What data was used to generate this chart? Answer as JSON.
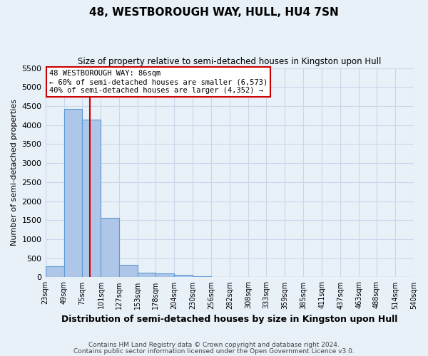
{
  "title": "48, WESTBOROUGH WAY, HULL, HU4 7SN",
  "subtitle": "Size of property relative to semi-detached houses in Kingston upon Hull",
  "xlabel": "Distribution of semi-detached houses by size in Kingston upon Hull",
  "ylabel": "Number of semi-detached properties",
  "footer_line1": "Contains HM Land Registry data © Crown copyright and database right 2024.",
  "footer_line2": "Contains public sector information licensed under the Open Government Licence v3.0.",
  "bin_labels": [
    "23sqm",
    "49sqm",
    "75sqm",
    "101sqm",
    "127sqm",
    "153sqm",
    "178sqm",
    "204sqm",
    "230sqm",
    "256sqm",
    "282sqm",
    "308sqm",
    "333sqm",
    "359sqm",
    "385sqm",
    "411sqm",
    "437sqm",
    "463sqm",
    "488sqm",
    "514sqm",
    "540sqm"
  ],
  "bar_values": [
    285,
    4420,
    4140,
    1555,
    325,
    125,
    105,
    55,
    35,
    0,
    0,
    0,
    0,
    0,
    0,
    0,
    0,
    0,
    0,
    0
  ],
  "bar_color": "#aec6e8",
  "bar_edge_color": "#5b9bd5",
  "grid_color": "#c8d8ea",
  "background_color": "#e8f0f8",
  "vline_x": 86,
  "vline_color": "#cc0000",
  "annotation_title": "48 WESTBOROUGH WAY: 86sqm",
  "annotation_line1": "← 60% of semi-detached houses are smaller (6,573)",
  "annotation_line2": "40% of semi-detached houses are larger (4,352) →",
  "annotation_box_color": "#ffffff",
  "annotation_box_edge": "#cc0000",
  "ylim": [
    0,
    5500
  ],
  "yticks": [
    0,
    500,
    1000,
    1500,
    2000,
    2500,
    3000,
    3500,
    4000,
    4500,
    5000,
    5500
  ],
  "bin_edges": [
    23,
    49,
    75,
    101,
    127,
    153,
    178,
    204,
    230,
    256,
    282,
    308,
    333,
    359,
    385,
    411,
    437,
    463,
    488,
    514,
    540
  ]
}
